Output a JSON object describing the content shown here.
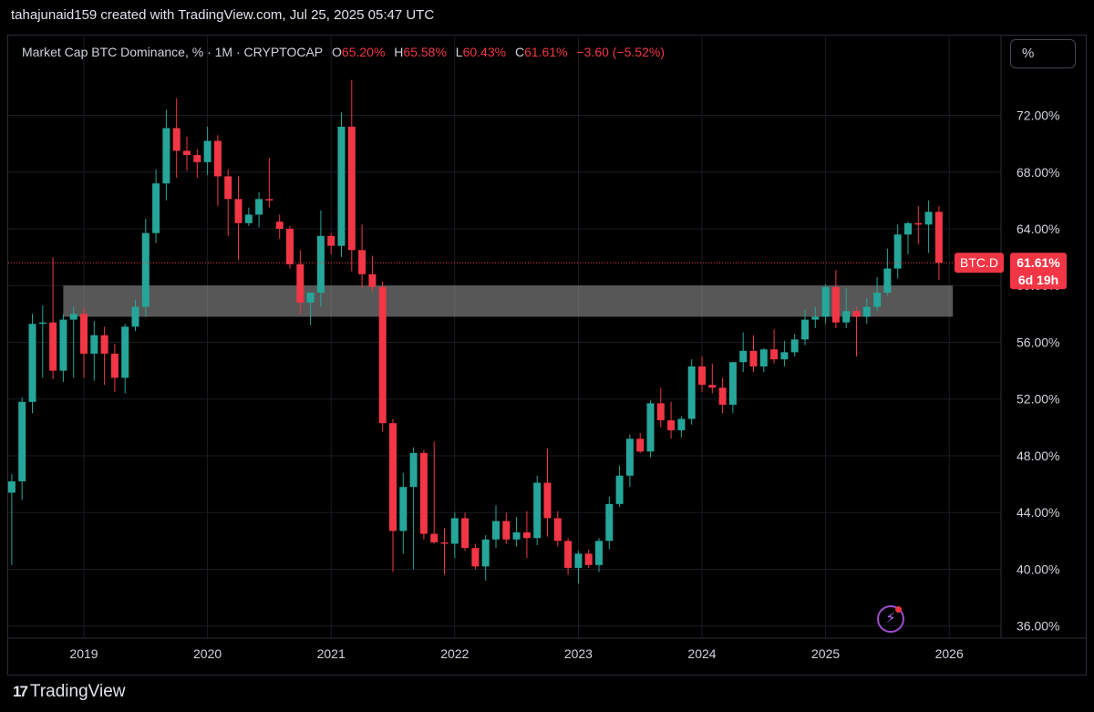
{
  "header": {
    "credit": "tahajunaid159 created with TradingView.com, Jul 25, 2025 05:47 UTC"
  },
  "legend": {
    "symbol": "Market Cap BTC Dominance, % · 1M · CRYPTOCAP",
    "o_label": "O",
    "o_value": "65.20%",
    "h_label": "H",
    "h_value": "65.58%",
    "l_label": "L",
    "l_value": "60.43%",
    "c_label": "C",
    "c_value": "61.61%",
    "change": "−3.60 (−5.52%)"
  },
  "scale_button": "%",
  "price_tag": {
    "symbol": "BTC.D",
    "value": "61.61%",
    "countdown": "6d 19h"
  },
  "footer": {
    "brand": "TradingView"
  },
  "icons": {
    "alert": "lightning-icon",
    "logo": "tradingview-logo-icon"
  },
  "colors": {
    "up": "#26a69a",
    "down": "#f23645",
    "background": "#000000",
    "zone": "#9e9e9e"
  },
  "chart_data": {
    "type": "candlestick",
    "interval": "1M",
    "ylim": [
      35,
      75
    ],
    "y_ticks": [
      "36.00%",
      "40.00%",
      "44.00%",
      "48.00%",
      "52.00%",
      "56.00%",
      "60.00%",
      "64.00%",
      "68.00%",
      "72.00%"
    ],
    "x_ticks": [
      "2019",
      "2020",
      "2021",
      "2022",
      "2023",
      "2024",
      "2025",
      "2026"
    ],
    "last_price": 61.61,
    "zone": {
      "from_date": "2018-11",
      "to_date": "2026-01",
      "low": 57.8,
      "high": 60.0
    },
    "candles": [
      {
        "t": "2018-06",
        "o": 45.4,
        "h": 46.7,
        "l": 40.3,
        "c": 46.2
      },
      {
        "t": "2018-07",
        "o": 46.2,
        "h": 52.1,
        "l": 44.9,
        "c": 51.8
      },
      {
        "t": "2018-08",
        "o": 51.8,
        "h": 58.0,
        "l": 51.0,
        "c": 57.3
      },
      {
        "t": "2018-09",
        "o": 57.3,
        "h": 58.6,
        "l": 53.5,
        "c": 57.4
      },
      {
        "t": "2018-10",
        "o": 57.4,
        "h": 62.0,
        "l": 53.4,
        "c": 54.0
      },
      {
        "t": "2018-11",
        "o": 54.0,
        "h": 58.0,
        "l": 53.2,
        "c": 57.6
      },
      {
        "t": "2018-12",
        "o": 57.6,
        "h": 58.5,
        "l": 53.5,
        "c": 58.0
      },
      {
        "t": "2019-01",
        "o": 58.0,
        "h": 58.4,
        "l": 53.5,
        "c": 55.2
      },
      {
        "t": "2019-02",
        "o": 55.2,
        "h": 57.5,
        "l": 53.3,
        "c": 56.5
      },
      {
        "t": "2019-03",
        "o": 56.5,
        "h": 57.1,
        "l": 53.0,
        "c": 55.2
      },
      {
        "t": "2019-04",
        "o": 55.2,
        "h": 55.9,
        "l": 52.5,
        "c": 53.5
      },
      {
        "t": "2019-05",
        "o": 53.5,
        "h": 57.3,
        "l": 52.4,
        "c": 57.1
      },
      {
        "t": "2019-06",
        "o": 57.1,
        "h": 59.0,
        "l": 56.8,
        "c": 58.5
      },
      {
        "t": "2019-07",
        "o": 58.5,
        "h": 64.7,
        "l": 57.8,
        "c": 63.7
      },
      {
        "t": "2019-08",
        "o": 63.7,
        "h": 68.2,
        "l": 63.0,
        "c": 67.2
      },
      {
        "t": "2019-09",
        "o": 67.2,
        "h": 72.4,
        "l": 66.0,
        "c": 71.1
      },
      {
        "t": "2019-10",
        "o": 71.1,
        "h": 73.2,
        "l": 67.6,
        "c": 69.5
      },
      {
        "t": "2019-11",
        "o": 69.5,
        "h": 70.5,
        "l": 68.1,
        "c": 69.2
      },
      {
        "t": "2019-12",
        "o": 69.2,
        "h": 69.6,
        "l": 67.6,
        "c": 68.7
      },
      {
        "t": "2020-01",
        "o": 68.7,
        "h": 71.2,
        "l": 67.8,
        "c": 70.2
      },
      {
        "t": "2020-02",
        "o": 70.2,
        "h": 70.6,
        "l": 65.6,
        "c": 67.7
      },
      {
        "t": "2020-03",
        "o": 67.7,
        "h": 68.2,
        "l": 63.5,
        "c": 66.1
      },
      {
        "t": "2020-04",
        "o": 66.1,
        "h": 67.7,
        "l": 61.8,
        "c": 64.4
      },
      {
        "t": "2020-05",
        "o": 64.4,
        "h": 65.5,
        "l": 64.2,
        "c": 65.0
      },
      {
        "t": "2020-06",
        "o": 65.0,
        "h": 66.6,
        "l": 64.1,
        "c": 66.1
      },
      {
        "t": "2020-07",
        "o": 66.1,
        "h": 69.0,
        "l": 65.5,
        "c": 66.0
      },
      {
        "t": "2020-08",
        "o": 64.5,
        "h": 65.0,
        "l": 63.3,
        "c": 64.0
      },
      {
        "t": "2020-09",
        "o": 64.0,
        "h": 64.2,
        "l": 61.2,
        "c": 61.5
      },
      {
        "t": "2020-10",
        "o": 61.5,
        "h": 62.5,
        "l": 58.0,
        "c": 58.8
      },
      {
        "t": "2020-11",
        "o": 58.8,
        "h": 59.5,
        "l": 57.2,
        "c": 59.5
      },
      {
        "t": "2020-12",
        "o": 59.5,
        "h": 65.3,
        "l": 58.5,
        "c": 63.5
      },
      {
        "t": "2021-01",
        "o": 63.5,
        "h": 63.7,
        "l": 62.2,
        "c": 62.8
      },
      {
        "t": "2021-02",
        "o": 62.8,
        "h": 72.2,
        "l": 62.0,
        "c": 71.2
      },
      {
        "t": "2021-03",
        "o": 71.2,
        "h": 74.5,
        "l": 61.0,
        "c": 62.5
      },
      {
        "t": "2021-04",
        "o": 62.5,
        "h": 64.3,
        "l": 59.8,
        "c": 60.8
      },
      {
        "t": "2021-05",
        "o": 60.8,
        "h": 62.1,
        "l": 59.6,
        "c": 59.9
      },
      {
        "t": "2021-06",
        "o": 59.9,
        "h": 60.3,
        "l": 49.7,
        "c": 50.3
      },
      {
        "t": "2021-07",
        "o": 50.3,
        "h": 50.6,
        "l": 39.8,
        "c": 42.7
      },
      {
        "t": "2021-08",
        "o": 42.7,
        "h": 46.8,
        "l": 41.1,
        "c": 45.8
      },
      {
        "t": "2021-09",
        "o": 45.8,
        "h": 48.6,
        "l": 40.0,
        "c": 48.2
      },
      {
        "t": "2021-10",
        "o": 48.2,
        "h": 48.4,
        "l": 42.1,
        "c": 42.5
      },
      {
        "t": "2021-11",
        "o": 42.5,
        "h": 49.0,
        "l": 41.8,
        "c": 41.9
      },
      {
        "t": "2021-12",
        "o": 41.9,
        "h": 42.9,
        "l": 39.6,
        "c": 41.8
      },
      {
        "t": "2022-01",
        "o": 41.8,
        "h": 44.0,
        "l": 40.8,
        "c": 43.6
      },
      {
        "t": "2022-02",
        "o": 43.6,
        "h": 44.0,
        "l": 41.3,
        "c": 41.5
      },
      {
        "t": "2022-03",
        "o": 41.5,
        "h": 41.8,
        "l": 40.0,
        "c": 40.2
      },
      {
        "t": "2022-04",
        "o": 40.2,
        "h": 42.4,
        "l": 39.2,
        "c": 42.1
      },
      {
        "t": "2022-05",
        "o": 42.1,
        "h": 44.5,
        "l": 41.5,
        "c": 43.4
      },
      {
        "t": "2022-06",
        "o": 43.4,
        "h": 44.0,
        "l": 41.8,
        "c": 42.1
      },
      {
        "t": "2022-07",
        "o": 42.1,
        "h": 43.7,
        "l": 41.6,
        "c": 42.6
      },
      {
        "t": "2022-08",
        "o": 42.6,
        "h": 44.1,
        "l": 40.8,
        "c": 42.2
      },
      {
        "t": "2022-09",
        "o": 42.2,
        "h": 46.6,
        "l": 41.7,
        "c": 46.1
      },
      {
        "t": "2022-10",
        "o": 46.1,
        "h": 48.5,
        "l": 42.3,
        "c": 43.6
      },
      {
        "t": "2022-11",
        "o": 43.6,
        "h": 44.1,
        "l": 41.6,
        "c": 42.0
      },
      {
        "t": "2022-12",
        "o": 42.0,
        "h": 42.2,
        "l": 39.6,
        "c": 40.1
      },
      {
        "t": "2023-01",
        "o": 40.1,
        "h": 41.3,
        "l": 39.0,
        "c": 41.1
      },
      {
        "t": "2023-02",
        "o": 41.1,
        "h": 41.4,
        "l": 40.1,
        "c": 40.3
      },
      {
        "t": "2023-03",
        "o": 40.3,
        "h": 42.2,
        "l": 39.8,
        "c": 42.0
      },
      {
        "t": "2023-04",
        "o": 42.0,
        "h": 45.1,
        "l": 41.4,
        "c": 44.6
      },
      {
        "t": "2023-05",
        "o": 44.6,
        "h": 47.3,
        "l": 44.4,
        "c": 46.6
      },
      {
        "t": "2023-06",
        "o": 46.6,
        "h": 49.5,
        "l": 45.8,
        "c": 49.2
      },
      {
        "t": "2023-07",
        "o": 49.2,
        "h": 49.6,
        "l": 48.2,
        "c": 48.3
      },
      {
        "t": "2023-08",
        "o": 48.3,
        "h": 51.9,
        "l": 47.9,
        "c": 51.7
      },
      {
        "t": "2023-09",
        "o": 51.7,
        "h": 52.8,
        "l": 50.0,
        "c": 50.5
      },
      {
        "t": "2023-10",
        "o": 50.5,
        "h": 51.8,
        "l": 49.2,
        "c": 49.8
      },
      {
        "t": "2023-11",
        "o": 49.8,
        "h": 50.8,
        "l": 49.3,
        "c": 50.6
      },
      {
        "t": "2023-12",
        "o": 50.6,
        "h": 54.8,
        "l": 50.2,
        "c": 54.3
      },
      {
        "t": "2024-01",
        "o": 54.3,
        "h": 55.0,
        "l": 52.5,
        "c": 53.0
      },
      {
        "t": "2024-02",
        "o": 53.0,
        "h": 54.5,
        "l": 52.4,
        "c": 52.8
      },
      {
        "t": "2024-03",
        "o": 52.8,
        "h": 53.5,
        "l": 51.0,
        "c": 51.6
      },
      {
        "t": "2024-04",
        "o": 51.6,
        "h": 54.6,
        "l": 51.0,
        "c": 54.6
      },
      {
        "t": "2024-05",
        "o": 54.6,
        "h": 56.7,
        "l": 53.9,
        "c": 55.4
      },
      {
        "t": "2024-06",
        "o": 55.4,
        "h": 56.5,
        "l": 53.9,
        "c": 54.3
      },
      {
        "t": "2024-07",
        "o": 54.3,
        "h": 55.6,
        "l": 53.9,
        "c": 55.5
      },
      {
        "t": "2024-08",
        "o": 55.5,
        "h": 56.9,
        "l": 54.5,
        "c": 54.8
      },
      {
        "t": "2024-09",
        "o": 54.8,
        "h": 56.1,
        "l": 54.3,
        "c": 55.3
      },
      {
        "t": "2024-10",
        "o": 55.3,
        "h": 56.6,
        "l": 55.0,
        "c": 56.2
      },
      {
        "t": "2024-11",
        "o": 56.2,
        "h": 58.3,
        "l": 55.8,
        "c": 57.6
      },
      {
        "t": "2024-12",
        "o": 57.6,
        "h": 58.5,
        "l": 57.0,
        "c": 57.8
      },
      {
        "t": "2025-01",
        "o": 57.8,
        "h": 60.1,
        "l": 57.3,
        "c": 59.9
      },
      {
        "t": "2025-02",
        "o": 59.9,
        "h": 61.1,
        "l": 57.0,
        "c": 57.4
      },
      {
        "t": "2025-03",
        "o": 57.4,
        "h": 59.8,
        "l": 57.0,
        "c": 58.2
      },
      {
        "t": "2025-04",
        "o": 58.2,
        "h": 58.5,
        "l": 55.0,
        "c": 57.8
      },
      {
        "t": "2025-05",
        "o": 57.8,
        "h": 59.1,
        "l": 57.3,
        "c": 58.5
      },
      {
        "t": "2025-06",
        "o": 58.5,
        "h": 60.6,
        "l": 58.2,
        "c": 59.5
      },
      {
        "t": "2025-07",
        "o": 59.5,
        "h": 62.6,
        "l": 59.3,
        "c": 61.2
      },
      {
        "t": "2025-08",
        "o": 61.2,
        "h": 64.3,
        "l": 60.5,
        "c": 63.6
      },
      {
        "t": "2025-09",
        "o": 63.6,
        "h": 64.5,
        "l": 62.2,
        "c": 64.4
      },
      {
        "t": "2025-10",
        "o": 64.4,
        "h": 65.6,
        "l": 62.9,
        "c": 64.3
      },
      {
        "t": "2025-11",
        "o": 64.3,
        "h": 66.0,
        "l": 62.3,
        "c": 65.2
      },
      {
        "t": "2025-12",
        "o": 65.2,
        "h": 65.6,
        "l": 60.4,
        "c": 61.6
      }
    ]
  }
}
